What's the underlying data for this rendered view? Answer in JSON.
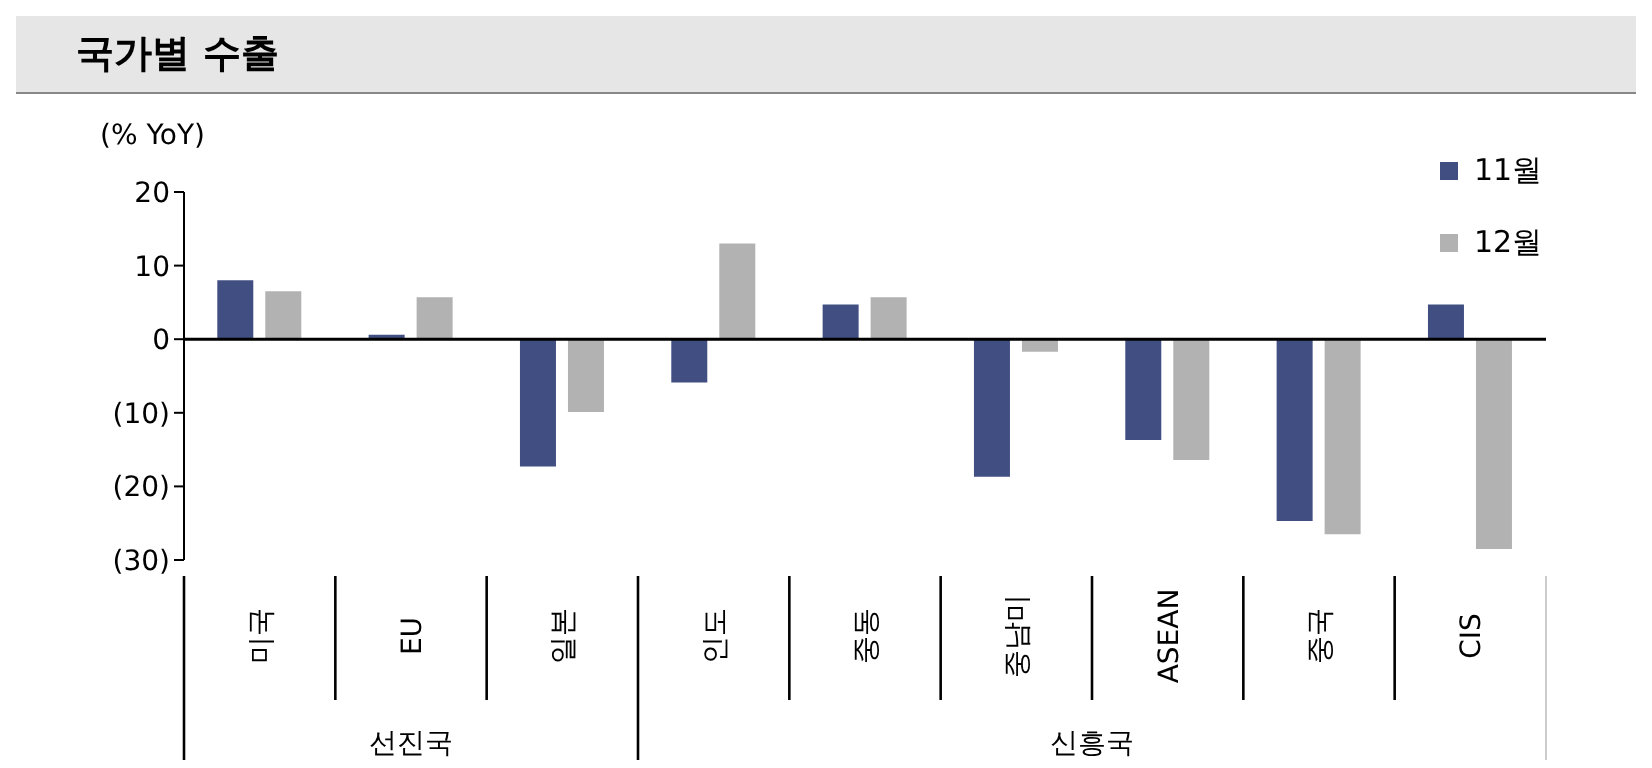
{
  "chart_data": {
    "type": "bar",
    "title": "국가별 수출",
    "ylabel": "(% YoY)",
    "categories": [
      "미국",
      "EU",
      "일본",
      "인도",
      "중동",
      "중남미",
      "ASEAN",
      "중국",
      "CIS"
    ],
    "series": [
      {
        "name": "11월",
        "color": "#404e82",
        "values": [
          8.0,
          0.6,
          -17.3,
          -5.9,
          4.7,
          -18.7,
          -13.7,
          -24.7,
          4.7
        ]
      },
      {
        "name": "12월",
        "color": "#b2b2b2",
        "values": [
          6.5,
          5.7,
          -9.9,
          13.0,
          5.7,
          -1.7,
          -16.4,
          -26.5,
          -28.5
        ]
      }
    ],
    "ylim": [
      -30,
      20
    ],
    "yticks": [
      20,
      10,
      0,
      {
        "value": -10,
        "label": "(10)"
      },
      {
        "value": -20,
        "label": "(20)"
      },
      {
        "value": -30,
        "label": "(30)"
      }
    ],
    "annotations": [
      "선진국",
      "신흥국"
    ],
    "ref_lines": [
      {
        "axis": "y",
        "value": 0,
        "color": "#000000"
      }
    ],
    "legend": "top right"
  }
}
